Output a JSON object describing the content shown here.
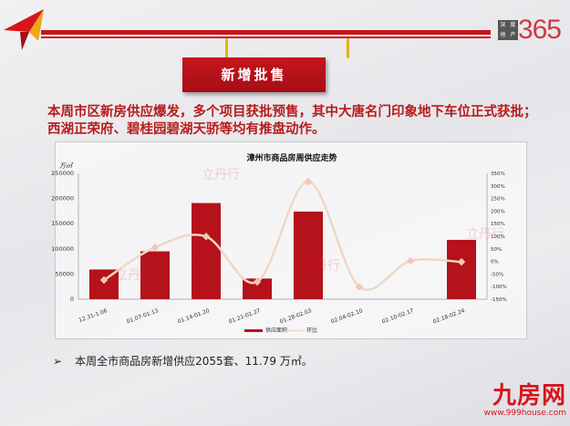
{
  "header": {
    "logo_text": "深度地产",
    "logo_number": "365",
    "banner": "新增批售"
  },
  "intro": "本周市区新房供应爆发，多个项目获批预售，其中大唐名门印象地下车位正式获批；西湖正荣府、碧桂园碧湖天骄等均有推盘动作。",
  "colors": {
    "accent": "#c8141c",
    "bar": "#b5121b",
    "line": "#eed8c4",
    "marker": "#f3c6b4"
  },
  "chart_data": {
    "type": "bar",
    "title": "漳州市商品房周供应走势",
    "ylabel": "万㎡",
    "categories": [
      "12.31-1.06",
      "01.07-01.13",
      "01.14-01.20",
      "01.21-01.27",
      "01.28-02.03",
      "02.04-02.10",
      "02.10-02.17",
      "02.18-02.24"
    ],
    "ylim": [
      0,
      250000
    ],
    "yticks": [
      "0",
      "50000",
      "100000",
      "150000",
      "200000",
      "250000"
    ],
    "y2lim": [
      -150,
      350
    ],
    "y2ticks": [
      "-150%",
      "-100%",
      "-50%",
      "0%",
      "50%",
      "100%",
      "150%",
      "200%",
      "250%",
      "300%",
      "350%"
    ],
    "series": [
      {
        "name": "供应面积",
        "type": "bar",
        "values": [
          59000,
          95000,
          191000,
          41000,
          174000,
          null,
          null,
          117900
        ]
      },
      {
        "name": "环比",
        "type": "line",
        "axis": "right",
        "values": [
          -74,
          56,
          99,
          -81,
          317,
          -101,
          2,
          -2
        ]
      }
    ],
    "legend": "bottom",
    "grid": false
  },
  "summary": {
    "bullet": "➢",
    "text": "本周全市商品房新增供应2055套、11.79 万㎡。"
  },
  "watermark": "立丹行",
  "footer": {
    "logo": "九房网",
    "url": "www.999house.com"
  }
}
